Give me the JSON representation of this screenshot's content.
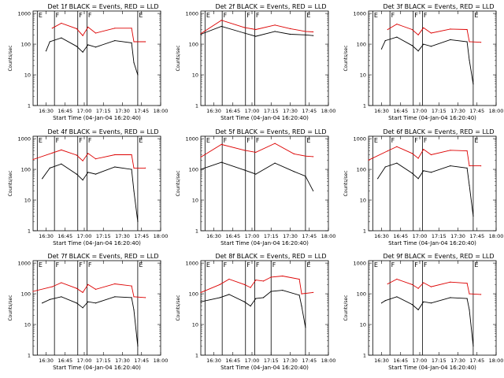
{
  "page": {
    "background": "#ffffff",
    "axis_color": "#000000",
    "events_color": "#000000",
    "lld_color": "#dd0000"
  },
  "chart_data": [
    {
      "type": "line",
      "title": "Det 1f BLACK = Events, RED = LLD",
      "xlabel": "Start Time (04-Jan-04 16:20:40)",
      "ylabel": "Counts/sec",
      "log_y": true,
      "ylim": [
        1,
        1200
      ],
      "xlim": [
        16.33,
        18.0
      ],
      "x_ticks": [
        "16:30",
        "16:45",
        "17:00",
        "17:15",
        "17:30",
        "17:45",
        "18:00"
      ],
      "y_ticks": [
        "1",
        "10",
        "100",
        "1000"
      ],
      "markers": [
        {
          "label": "E",
          "x": 16.385
        },
        {
          "label": "F",
          "x": 16.61
        },
        {
          "label": "F",
          "x": 16.915
        },
        {
          "label": "F",
          "x": 17.035
        },
        {
          "label": "E",
          "x": 17.7
        }
      ],
      "events_red": [
        [
          16.58,
          330
        ],
        [
          16.7,
          480
        ],
        [
          16.9,
          320
        ],
        [
          16.98,
          190
        ],
        [
          17.05,
          360
        ],
        [
          17.15,
          230
        ],
        [
          17.4,
          330
        ],
        [
          17.62,
          330
        ],
        [
          17.65,
          120
        ],
        [
          17.8,
          120
        ]
      ],
      "events_black": [
        [
          16.5,
          60
        ],
        [
          16.55,
          120
        ],
        [
          16.7,
          160
        ],
        [
          16.9,
          85
        ],
        [
          16.98,
          55
        ],
        [
          17.05,
          95
        ],
        [
          17.15,
          80
        ],
        [
          17.4,
          130
        ],
        [
          17.62,
          110
        ],
        [
          17.65,
          25
        ],
        [
          17.7,
          10
        ]
      ]
    },
    {
      "type": "line",
      "title": "Det 2f BLACK = Events, RED = LLD",
      "xlabel": "Start Time (04-Jan-04 16:20:40)",
      "ylabel": "Counts/sec",
      "log_y": true,
      "ylim": [
        1,
        1200
      ],
      "xlim": [
        16.33,
        18.0
      ],
      "x_ticks": [
        "16:30",
        "16:45",
        "17:00",
        "17:15",
        "17:30",
        "17:45",
        "18:00"
      ],
      "y_ticks": [
        "1",
        "10",
        "100",
        "1000"
      ],
      "markers": [
        {
          "label": "E",
          "x": 16.385
        },
        {
          "label": "F",
          "x": 16.61
        },
        {
          "label": "F",
          "x": 16.915
        },
        {
          "label": "F",
          "x": 17.035
        },
        {
          "label": "E",
          "x": 17.7
        }
      ],
      "events_red": [
        [
          16.33,
          220
        ],
        [
          16.6,
          600
        ],
        [
          16.9,
          350
        ],
        [
          17.05,
          300
        ],
        [
          17.3,
          420
        ],
        [
          17.5,
          320
        ],
        [
          17.7,
          260
        ],
        [
          17.8,
          250
        ]
      ],
      "events_black": [
        [
          16.33,
          210
        ],
        [
          16.6,
          380
        ],
        [
          16.9,
          230
        ],
        [
          17.05,
          180
        ],
        [
          17.3,
          260
        ],
        [
          17.5,
          210
        ],
        [
          17.7,
          200
        ],
        [
          17.8,
          190
        ]
      ]
    },
    {
      "type": "line",
      "title": "Det 3f BLACK = Events, RED = LLD",
      "xlabel": "Start Time (04-Jan-04 16:20:40)",
      "ylabel": "Counts/sec",
      "log_y": true,
      "ylim": [
        1,
        1200
      ],
      "xlim": [
        16.33,
        18.0
      ],
      "x_ticks": [
        "16:30",
        "16:45",
        "17:00",
        "17:15",
        "17:30",
        "17:45",
        "18:00"
      ],
      "y_ticks": [
        "1",
        "10",
        "100",
        "1000"
      ],
      "markers": [
        {
          "label": "E",
          "x": 16.385
        },
        {
          "label": "F",
          "x": 16.61
        },
        {
          "label": "F",
          "x": 16.915
        },
        {
          "label": "F",
          "x": 17.035
        },
        {
          "label": "E",
          "x": 17.7
        }
      ],
      "events_red": [
        [
          16.58,
          300
        ],
        [
          16.7,
          450
        ],
        [
          16.9,
          300
        ],
        [
          16.98,
          200
        ],
        [
          17.05,
          340
        ],
        [
          17.15,
          230
        ],
        [
          17.4,
          310
        ],
        [
          17.62,
          300
        ],
        [
          17.65,
          120
        ],
        [
          17.8,
          115
        ]
      ],
      "events_black": [
        [
          16.5,
          70
        ],
        [
          16.55,
          130
        ],
        [
          16.7,
          170
        ],
        [
          16.9,
          90
        ],
        [
          16.98,
          60
        ],
        [
          17.05,
          100
        ],
        [
          17.15,
          85
        ],
        [
          17.4,
          140
        ],
        [
          17.62,
          120
        ],
        [
          17.65,
          30
        ],
        [
          17.7,
          5
        ]
      ]
    },
    {
      "type": "line",
      "title": "Det 4f BLACK = Events, RED = LLD",
      "xlabel": "Start Time (04-Jan-04 16:20:40)",
      "ylabel": "Counts/sec",
      "log_y": true,
      "ylim": [
        1,
        1200
      ],
      "xlim": [
        16.33,
        18.0
      ],
      "x_ticks": [
        "16:30",
        "16:45",
        "17:00",
        "17:15",
        "17:30",
        "17:45",
        "18:00"
      ],
      "y_ticks": [
        "1",
        "10",
        "100",
        "1000"
      ],
      "markers": [
        {
          "label": "E",
          "x": 16.385
        },
        {
          "label": "F",
          "x": 16.61
        },
        {
          "label": "F",
          "x": 16.915
        },
        {
          "label": "F",
          "x": 17.035
        },
        {
          "label": "E",
          "x": 17.7
        }
      ],
      "events_red": [
        [
          16.33,
          210
        ],
        [
          16.58,
          340
        ],
        [
          16.7,
          430
        ],
        [
          16.9,
          290
        ],
        [
          16.98,
          190
        ],
        [
          17.05,
          330
        ],
        [
          17.15,
          220
        ],
        [
          17.4,
          300
        ],
        [
          17.62,
          300
        ],
        [
          17.65,
          110
        ],
        [
          17.8,
          110
        ]
      ],
      "events_black": [
        [
          16.45,
          50
        ],
        [
          16.55,
          110
        ],
        [
          16.7,
          150
        ],
        [
          16.9,
          70
        ],
        [
          16.98,
          45
        ],
        [
          17.05,
          80
        ],
        [
          17.15,
          70
        ],
        [
          17.4,
          120
        ],
        [
          17.62,
          100
        ],
        [
          17.65,
          20
        ],
        [
          17.7,
          2
        ]
      ]
    },
    {
      "type": "line",
      "title": "Det 5f BLACK = Events, RED = LLD",
      "xlabel": "Start Time (04-Jan-04 16:20:40)",
      "ylabel": "Counts/sec",
      "log_y": true,
      "ylim": [
        1,
        1200
      ],
      "xlim": [
        16.33,
        18.0
      ],
      "x_ticks": [
        "16:30",
        "16:45",
        "17:00",
        "17:15",
        "17:30",
        "17:45",
        "18:00"
      ],
      "y_ticks": [
        "1",
        "10",
        "100",
        "1000"
      ],
      "markers": [
        {
          "label": "E",
          "x": 16.385
        },
        {
          "label": "F",
          "x": 16.61
        },
        {
          "label": "F",
          "x": 16.915
        },
        {
          "label": "F",
          "x": 17.035
        },
        {
          "label": "E",
          "x": 17.7
        }
      ],
      "events_red": [
        [
          16.33,
          250
        ],
        [
          16.6,
          650
        ],
        [
          16.9,
          420
        ],
        [
          17.05,
          360
        ],
        [
          17.3,
          700
        ],
        [
          17.55,
          320
        ],
        [
          17.7,
          270
        ],
        [
          17.8,
          260
        ]
      ],
      "events_black": [
        [
          16.33,
          100
        ],
        [
          16.6,
          170
        ],
        [
          16.9,
          95
        ],
        [
          17.05,
          70
        ],
        [
          17.3,
          160
        ],
        [
          17.55,
          85
        ],
        [
          17.7,
          60
        ],
        [
          17.8,
          20
        ]
      ]
    },
    {
      "type": "line",
      "title": "Det 6f BLACK = Events, RED = LLD",
      "xlabel": "Start Time (04-Jan-04 16:20:40)",
      "ylabel": "Counts/sec",
      "log_y": true,
      "ylim": [
        1,
        1200
      ],
      "xlim": [
        16.33,
        18.0
      ],
      "x_ticks": [
        "16:30",
        "16:45",
        "17:00",
        "17:15",
        "17:30",
        "17:45",
        "18:00"
      ],
      "y_ticks": [
        "1",
        "10",
        "100",
        "1000"
      ],
      "markers": [
        {
          "label": "E",
          "x": 16.385
        },
        {
          "label": "F",
          "x": 16.61
        },
        {
          "label": "F",
          "x": 16.915
        },
        {
          "label": "F",
          "x": 17.035
        },
        {
          "label": "E",
          "x": 17.7
        }
      ],
      "events_red": [
        [
          16.33,
          200
        ],
        [
          16.58,
          400
        ],
        [
          16.7,
          550
        ],
        [
          16.9,
          330
        ],
        [
          16.98,
          230
        ],
        [
          17.05,
          450
        ],
        [
          17.15,
          300
        ],
        [
          17.4,
          420
        ],
        [
          17.62,
          400
        ],
        [
          17.65,
          130
        ],
        [
          17.8,
          130
        ]
      ],
      "events_black": [
        [
          16.45,
          50
        ],
        [
          16.55,
          120
        ],
        [
          16.7,
          160
        ],
        [
          16.9,
          75
        ],
        [
          16.98,
          50
        ],
        [
          17.05,
          90
        ],
        [
          17.15,
          80
        ],
        [
          17.4,
          130
        ],
        [
          17.62,
          110
        ],
        [
          17.65,
          30
        ],
        [
          17.7,
          3
        ]
      ]
    },
    {
      "type": "line",
      "title": "Det 7f BLACK = Events, RED = LLD",
      "xlabel": "Start Time (04-Jan-04 16:20:40)",
      "ylabel": "Counts/sec",
      "log_y": true,
      "ylim": [
        1,
        1200
      ],
      "xlim": [
        16.33,
        18.0
      ],
      "x_ticks": [
        "16:30",
        "16:45",
        "17:00",
        "17:15",
        "17:30",
        "17:45",
        "18:00"
      ],
      "y_ticks": [
        "1",
        "10",
        "100",
        "1000"
      ],
      "markers": [
        {
          "label": "E",
          "x": 16.385
        },
        {
          "label": "F",
          "x": 16.61
        },
        {
          "label": "F",
          "x": 16.915
        },
        {
          "label": "F",
          "x": 17.035
        },
        {
          "label": "E",
          "x": 17.7
        }
      ],
      "events_red": [
        [
          16.33,
          120
        ],
        [
          16.58,
          170
        ],
        [
          16.7,
          230
        ],
        [
          16.9,
          150
        ],
        [
          16.98,
          110
        ],
        [
          17.05,
          200
        ],
        [
          17.15,
          140
        ],
        [
          17.4,
          210
        ],
        [
          17.62,
          180
        ],
        [
          17.65,
          80
        ],
        [
          17.8,
          75
        ]
      ],
      "events_black": [
        [
          16.45,
          50
        ],
        [
          16.55,
          65
        ],
        [
          16.7,
          80
        ],
        [
          16.9,
          50
        ],
        [
          16.98,
          35
        ],
        [
          17.05,
          55
        ],
        [
          17.15,
          50
        ],
        [
          17.4,
          80
        ],
        [
          17.62,
          75
        ],
        [
          17.65,
          30
        ],
        [
          17.7,
          2
        ]
      ]
    },
    {
      "type": "line",
      "title": "Det 8f BLACK = Events, RED = LLD",
      "xlabel": "Start Time (04-Jan-04 16:20:40)",
      "ylabel": "Counts/sec",
      "log_y": true,
      "ylim": [
        1,
        1200
      ],
      "xlim": [
        16.33,
        18.0
      ],
      "x_ticks": [
        "16:30",
        "16:45",
        "17:00",
        "17:15",
        "17:30",
        "17:45",
        "18:00"
      ],
      "y_ticks": [
        "1",
        "10",
        "100",
        "1000"
      ],
      "markers": [
        {
          "label": "E",
          "x": 16.385
        },
        {
          "label": "F",
          "x": 16.61
        },
        {
          "label": "F",
          "x": 16.915
        },
        {
          "label": "F",
          "x": 17.035
        },
        {
          "label": "F",
          "x": 17.25
        },
        {
          "label": "E",
          "x": 17.7
        }
      ],
      "events_red": [
        [
          16.33,
          110
        ],
        [
          16.58,
          200
        ],
        [
          16.7,
          300
        ],
        [
          16.9,
          200
        ],
        [
          16.98,
          160
        ],
        [
          17.05,
          280
        ],
        [
          17.15,
          260
        ],
        [
          17.25,
          350
        ],
        [
          17.4,
          380
        ],
        [
          17.62,
          300
        ],
        [
          17.65,
          100
        ],
        [
          17.8,
          110
        ]
      ],
      "events_black": [
        [
          16.33,
          55
        ],
        [
          16.58,
          75
        ],
        [
          16.7,
          95
        ],
        [
          16.9,
          55
        ],
        [
          16.98,
          40
        ],
        [
          17.05,
          70
        ],
        [
          17.15,
          75
        ],
        [
          17.25,
          120
        ],
        [
          17.4,
          130
        ],
        [
          17.62,
          90
        ],
        [
          17.65,
          40
        ],
        [
          17.7,
          8
        ]
      ]
    },
    {
      "type": "line",
      "title": "Det 9f BLACK = Events, RED = LLD",
      "xlabel": "Start Time (04-Jan-04 16:20:40)",
      "ylabel": "Counts/sec",
      "log_y": true,
      "ylim": [
        1,
        1200
      ],
      "xlim": [
        16.33,
        18.0
      ],
      "x_ticks": [
        "16:30",
        "16:45",
        "17:00",
        "17:15",
        "17:30",
        "17:45",
        "18:00"
      ],
      "y_ticks": [
        "1",
        "10",
        "100",
        "1000"
      ],
      "markers": [
        {
          "label": "E",
          "x": 16.385
        },
        {
          "label": "F",
          "x": 16.61
        },
        {
          "label": "F",
          "x": 16.915
        },
        {
          "label": "F",
          "x": 17.035
        },
        {
          "label": "E",
          "x": 17.7
        }
      ],
      "events_red": [
        [
          16.58,
          210
        ],
        [
          16.7,
          300
        ],
        [
          16.9,
          200
        ],
        [
          16.98,
          150
        ],
        [
          17.05,
          230
        ],
        [
          17.15,
          170
        ],
        [
          17.4,
          240
        ],
        [
          17.62,
          220
        ],
        [
          17.65,
          100
        ],
        [
          17.8,
          95
        ]
      ],
      "events_black": [
        [
          16.5,
          50
        ],
        [
          16.55,
          60
        ],
        [
          16.7,
          80
        ],
        [
          16.9,
          45
        ],
        [
          16.98,
          30
        ],
        [
          17.05,
          55
        ],
        [
          17.15,
          50
        ],
        [
          17.4,
          75
        ],
        [
          17.62,
          70
        ],
        [
          17.65,
          30
        ],
        [
          17.7,
          2
        ]
      ]
    }
  ]
}
